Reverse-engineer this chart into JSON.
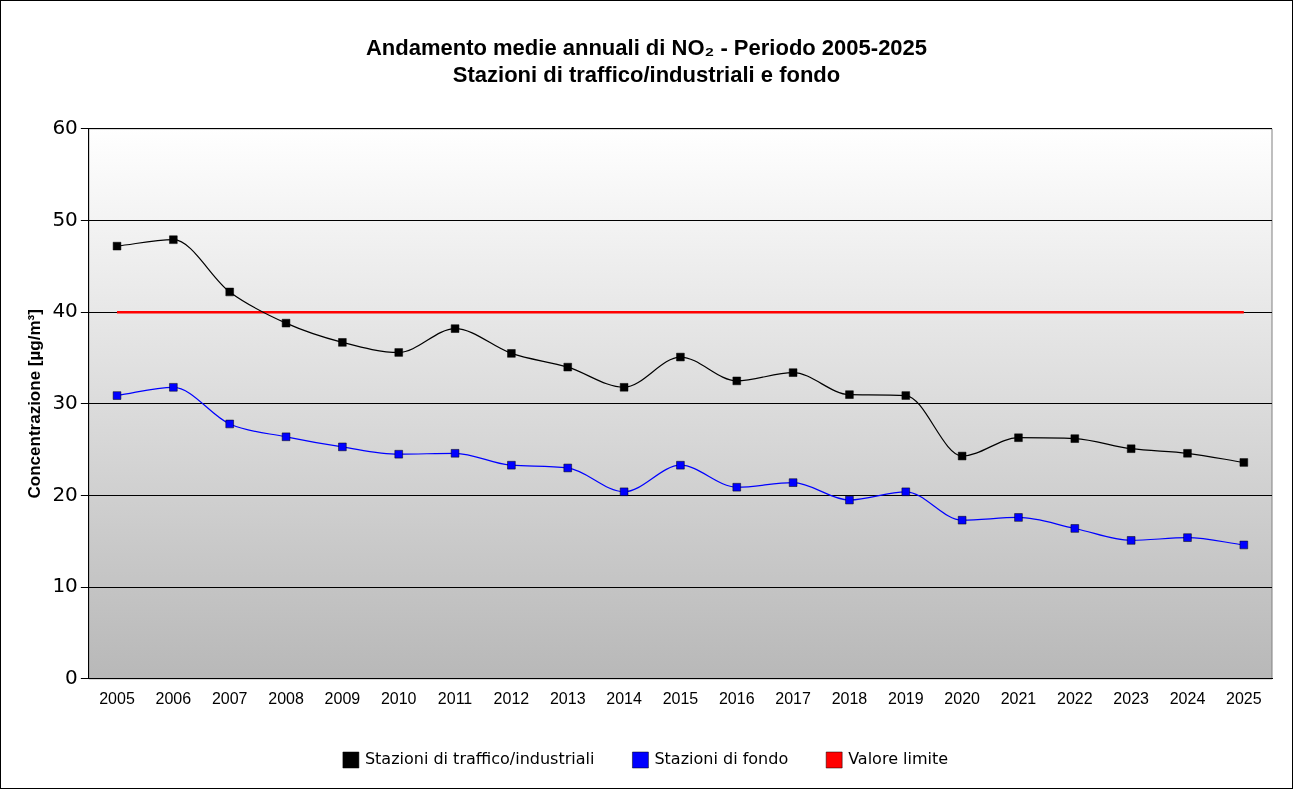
{
  "chart_data": {
    "type": "line",
    "title": "Andamento medie annuali di NO₂ - Periodo 2005-2025\nStazioni di traffico/industriali e fondo",
    "ylabel": "Concentrazione [µg/m³]",
    "categories": [
      "2005",
      "2006",
      "2007",
      "2008",
      "2009",
      "2010",
      "2011",
      "2012",
      "2013",
      "2014",
      "2015",
      "2016",
      "2017",
      "2018",
      "2019",
      "2020",
      "2021",
      "2022",
      "2023",
      "2024",
      "2025"
    ],
    "series": [
      {
        "name": "Stazioni di traffico/industriali",
        "color": "#000000",
        "marker": "square",
        "values": [
          47.2,
          47.9,
          42.2,
          38.8,
          36.7,
          35.6,
          38.2,
          35.5,
          34.0,
          31.8,
          35.1,
          32.5,
          33.4,
          31.0,
          30.9,
          24.3,
          26.3,
          26.2,
          25.1,
          24.6,
          23.6
        ]
      },
      {
        "name": "Stazioni di fondo",
        "color": "#0000ff",
        "marker": "square",
        "values": [
          30.9,
          31.8,
          27.8,
          26.4,
          25.3,
          24.5,
          24.6,
          23.3,
          23.0,
          20.4,
          23.3,
          20.9,
          21.4,
          19.5,
          20.4,
          17.3,
          17.6,
          16.4,
          15.1,
          15.4,
          14.6
        ]
      },
      {
        "name": "Valore limite",
        "color": "#ff0000",
        "marker": "none",
        "values": [
          40,
          40,
          40,
          40,
          40,
          40,
          40,
          40,
          40,
          40,
          40,
          40,
          40,
          40,
          40,
          40,
          40,
          40,
          40,
          40,
          40
        ]
      }
    ],
    "ylim": [
      0,
      60
    ],
    "yticks": [
      0,
      10,
      20,
      30,
      40,
      50,
      60
    ],
    "grid": "y",
    "legend": "bottom"
  }
}
